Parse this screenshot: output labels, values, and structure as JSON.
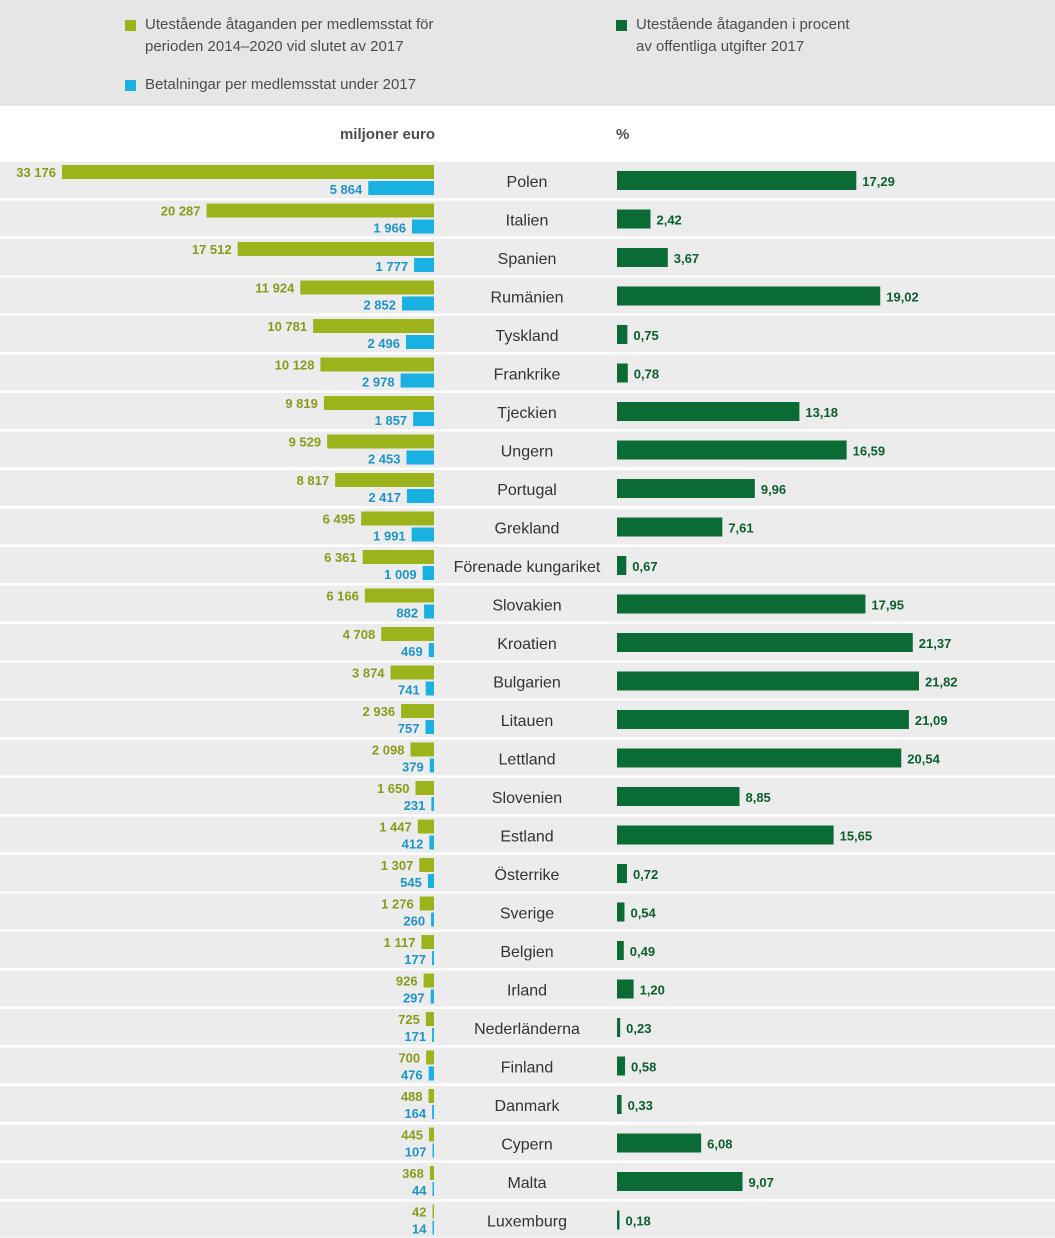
{
  "legend": {
    "outstanding": {
      "label": "Utestående åtaganden per medlemsstat för\nperioden 2014–2020 vid slutet av 2017",
      "color": "#9cb31c"
    },
    "payments": {
      "label": "Betalningar per medlemsstat under 2017",
      "color": "#19b1e2"
    },
    "percent": {
      "label": "Utestående åtaganden i procent\nav offentliga utgifter 2017",
      "color": "#0b6b35"
    }
  },
  "units": {
    "left": "miljoner euro",
    "right": "%"
  },
  "chart_data": {
    "type": "bar",
    "categories": [
      "Polen",
      "Italien",
      "Spanien",
      "Rumänien",
      "Tyskland",
      "Frankrike",
      "Tjeckien",
      "Ungern",
      "Portugal",
      "Grekland",
      "Förenade kungariket",
      "Slovakien",
      "Kroatien",
      "Bulgarien",
      "Litauen",
      "Lettland",
      "Slovenien",
      "Estland",
      "Österrike",
      "Sverige",
      "Belgien",
      "Irland",
      "Nederländerna",
      "Finland",
      "Danmark",
      "Cypern",
      "Malta",
      "Luxemburg"
    ],
    "series": [
      {
        "name": "Utestående åtaganden per medlemsstat för perioden 2014–2020 vid slutet av 2017",
        "unit": "miljoner euro",
        "values": [
          33176,
          20287,
          17512,
          11924,
          10781,
          10128,
          9819,
          9529,
          8817,
          6495,
          6361,
          6166,
          4708,
          3874,
          2936,
          2098,
          1650,
          1447,
          1307,
          1276,
          1117,
          926,
          725,
          700,
          488,
          445,
          368,
          42
        ],
        "labels": [
          "33 176",
          "20 287",
          "17 512",
          "11 924",
          "10 781",
          "10 128",
          "9 819",
          "9 529",
          "8 817",
          "6 495",
          "6 361",
          "6 166",
          "4 708",
          "3 874",
          "2 936",
          "2 098",
          "1 650",
          "1 447",
          "1 307",
          "1 276",
          "1 117",
          "926",
          "725",
          "700",
          "488",
          "445",
          "368",
          "42"
        ]
      },
      {
        "name": "Betalningar per medlemsstat under 2017",
        "unit": "miljoner euro",
        "values": [
          5864,
          1966,
          1777,
          2852,
          2496,
          2978,
          1857,
          2453,
          2417,
          1991,
          1009,
          882,
          469,
          741,
          757,
          379,
          231,
          412,
          545,
          260,
          177,
          297,
          171,
          476,
          164,
          107,
          44,
          14
        ],
        "labels": [
          "5 864",
          "1 966",
          "1 777",
          "2 852",
          "2 496",
          "2 978",
          "1 857",
          "2 453",
          "2 417",
          "1 991",
          "1 009",
          "882",
          "469",
          "741",
          "757",
          "379",
          "231",
          "412",
          "545",
          "260",
          "177",
          "297",
          "171",
          "476",
          "164",
          "107",
          "44",
          "14"
        ]
      },
      {
        "name": "Utestående åtaganden i procent av offentliga utgifter 2017",
        "unit": "%",
        "values": [
          17.29,
          2.42,
          3.67,
          19.02,
          0.75,
          0.78,
          13.18,
          16.59,
          9.96,
          7.61,
          0.67,
          17.95,
          21.37,
          21.82,
          21.09,
          20.54,
          8.85,
          15.65,
          0.72,
          0.54,
          0.49,
          1.2,
          0.23,
          0.58,
          0.33,
          6.08,
          9.07,
          0.18
        ],
        "labels": [
          "17,29",
          "2,42",
          "3,67",
          "19,02",
          "0,75",
          "0,78",
          "13,18",
          "16,59",
          "9,96",
          "7,61",
          "0,67",
          "17,95",
          "21,37",
          "21,82",
          "21,09",
          "20,54",
          "8,85",
          "15,65",
          "0,72",
          "0,54",
          "0,49",
          "1,20",
          "0,23",
          "0,58",
          "0,33",
          "6,08",
          "9,07",
          "0,18"
        ]
      }
    ],
    "legend_position": "top"
  }
}
